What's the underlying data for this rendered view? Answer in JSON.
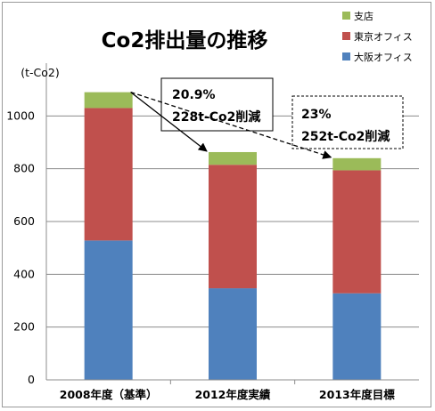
{
  "chart_data": {
    "type": "bar",
    "stacked": true,
    "title": "Co2排出量の推移",
    "unit_label": "(t-Co2)",
    "xlabel": "",
    "ylabel": "",
    "ylim": [
      0,
      1200
    ],
    "yticks": [
      "0",
      "200",
      "400",
      "600",
      "800",
      "1000"
    ],
    "grid": true,
    "legend_position": "top-right",
    "categories": [
      "2008年度（基準）",
      "2012年度実績",
      "2013年度目標"
    ],
    "series": [
      {
        "name": "大阪オフィス",
        "values": [
          528,
          347,
          328
        ],
        "color": "#4f81bd"
      },
      {
        "name": "東京オフィス",
        "values": [
          502,
          468,
          466
        ],
        "color": "#c0504d"
      },
      {
        "name": "支店",
        "values": [
          60,
          48,
          46
        ],
        "color": "#9bbb59"
      }
    ],
    "annotations": [
      {
        "line1": "20.9%",
        "line2": "228t-Co2削減",
        "style": "solid"
      },
      {
        "line1": "23%",
        "line2": "252t-Co2削減",
        "style": "dashed"
      }
    ]
  }
}
